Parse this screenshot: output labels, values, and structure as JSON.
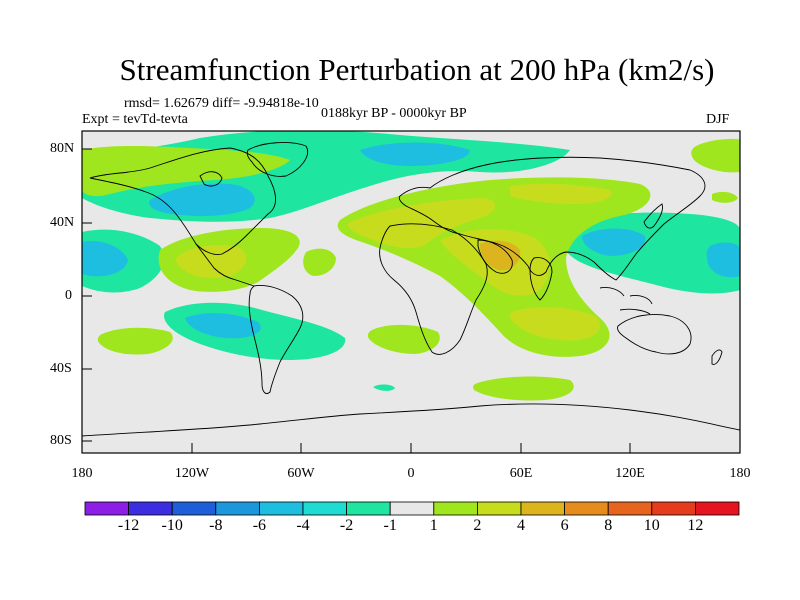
{
  "title": "Streamfunction Perturbation at 200 hPa (km2/s)",
  "stats_text": "rmsd= 1.62679 diff= -9.94818e-10",
  "experiment_text": "Expt = tevTd-tevta",
  "period_text": "0188kyr BP - 0000kyr BP",
  "season_text": "DJF",
  "y_axis_labels": [
    "80N",
    "40N",
    "0",
    "40S",
    "80S"
  ],
  "x_axis_labels": [
    "180",
    "120W",
    "60W",
    "0",
    "60E",
    "120E",
    "180"
  ],
  "colorbar": {
    "labels": [
      "-12",
      "-10",
      "-8",
      "-6",
      "-4",
      "-2",
      "-1",
      "1",
      "2",
      "4",
      "6",
      "8",
      "10",
      "12"
    ],
    "colors": [
      "#8c1ee6",
      "#3c2ee0",
      "#1e5fd9",
      "#1e96dc",
      "#1ebee0",
      "#1edcd2",
      "#1ee6a0",
      "#e8e8e8",
      "#a0e61e",
      "#c8dc1e",
      "#dcb41e",
      "#e68c1e",
      "#e6641e",
      "#e63c1e",
      "#e6141e"
    ]
  },
  "fill_colors": {
    "neutral": "#e8e8e8",
    "neg_weak": "#1ee6a0",
    "neg_mid": "#1ebee0",
    "neg_strong": "#1e96dc",
    "pos_weak": "#a0e61e",
    "pos_mid": "#c8dc1e",
    "pos_strong": "#dcb41e"
  }
}
